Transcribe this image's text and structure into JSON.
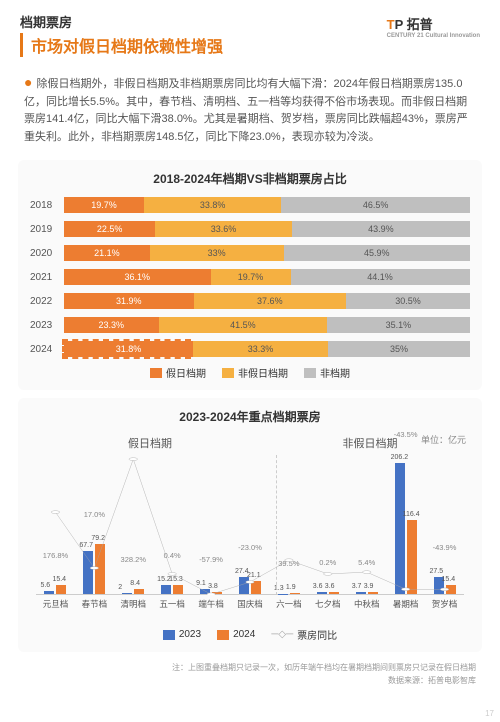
{
  "header": {
    "section": "档期票房",
    "title": "市场对假日档期依赖性增强",
    "logo_t": "T",
    "logo_p": "P 拓普",
    "logo_sub": "CENTURY 21 Cultural Innovation"
  },
  "body": {
    "text": "除假日档期外，非假日档期及非档期票房同比均有大幅下滑：2024年假日档期票房135.0亿，同比增长5.5%。其中，春节档、清明档、五一档等均获得不俗市场表现。而非假日档期票房141.4亿，同比大幅下滑38.0%。尤其是暑期档、贺岁档，票房同比跌幅超43%，票房严重失利。此外，非档期票房148.5亿，同比下降23.0%，表现亦较为冷淡。"
  },
  "chart1": {
    "title": "2018-2024年档期VS非档期票房占比",
    "rows": [
      {
        "year": "2018",
        "holiday": 19.7,
        "nonholiday": 33.8,
        "nonperiod": 46.5
      },
      {
        "year": "2019",
        "holiday": 22.5,
        "nonholiday": 33.6,
        "nonperiod": 43.9
      },
      {
        "year": "2020",
        "holiday": 21.1,
        "nonholiday": 33.0,
        "nonperiod": 45.9
      },
      {
        "year": "2021",
        "holiday": 36.1,
        "nonholiday": 19.7,
        "nonperiod": 44.1
      },
      {
        "year": "2022",
        "holiday": 31.9,
        "nonholiday": 37.6,
        "nonperiod": 30.5
      },
      {
        "year": "2023",
        "holiday": 23.3,
        "nonholiday": 41.5,
        "nonperiod": 35.1
      },
      {
        "year": "2024",
        "holiday": 31.8,
        "nonholiday": 33.3,
        "nonperiod": 35.0,
        "highlight": true
      }
    ],
    "legend": {
      "holiday": "假日档期",
      "nonholiday": "非假日档期",
      "nonperiod": "非档期"
    },
    "colors": {
      "holiday": "#ed7d31",
      "nonholiday": "#f5b041",
      "nonperiod": "#bfbfbf"
    }
  },
  "chart2": {
    "title": "2023-2024年重点档期票房",
    "unit": "单位：亿元",
    "left_label": "假日档期",
    "right_label": "非假日档期",
    "ymax": 220,
    "groups": [
      {
        "name": "元旦档",
        "v2023": 5.6,
        "v2024": 15.4,
        "growth": "176.8%"
      },
      {
        "name": "春节档",
        "v2023": 67.7,
        "v2024": 79.2,
        "growth": "17.0%"
      },
      {
        "name": "清明档",
        "v2023": 2.0,
        "v2024": 8.4,
        "growth": "328.2%"
      },
      {
        "name": "五一档",
        "v2023": 15.2,
        "v2024": 15.3,
        "growth": "0.4%"
      },
      {
        "name": "端午档",
        "v2023": 9.1,
        "v2024": 3.8,
        "growth": "-57.9%"
      },
      {
        "name": "国庆档",
        "v2023": 27.4,
        "v2024": 21.1,
        "growth": "-23.0%"
      },
      {
        "name": "六一档",
        "v2023": 1.3,
        "v2024": 1.9,
        "growth": "39.5%"
      },
      {
        "name": "七夕档",
        "v2023": 3.6,
        "v2024": 3.6,
        "growth": "0.2%"
      },
      {
        "name": "中秋档",
        "v2023": 3.7,
        "v2024": 3.9,
        "growth": "5.4%"
      },
      {
        "name": "暑期档",
        "v2023": 206.2,
        "v2024": 116.4,
        "growth": "-43.5%"
      },
      {
        "name": "贺岁档",
        "v2023": 27.5,
        "v2024": 15.4,
        "growth": "-43.9%"
      }
    ],
    "split_after": 6,
    "legend": {
      "l2023": "2023",
      "l2024": "2024",
      "line": "票房同比"
    },
    "colors": {
      "b2023": "#4472c4",
      "b2024": "#ed7d31",
      "line": "#a6a6a6"
    }
  },
  "footer": {
    "note": "注：上图重叠档期只记录一次，如历年端午档均在暑期档期间则票房只记录在假日档期",
    "source": "数据来源：拓普电影智库",
    "page": "17"
  }
}
